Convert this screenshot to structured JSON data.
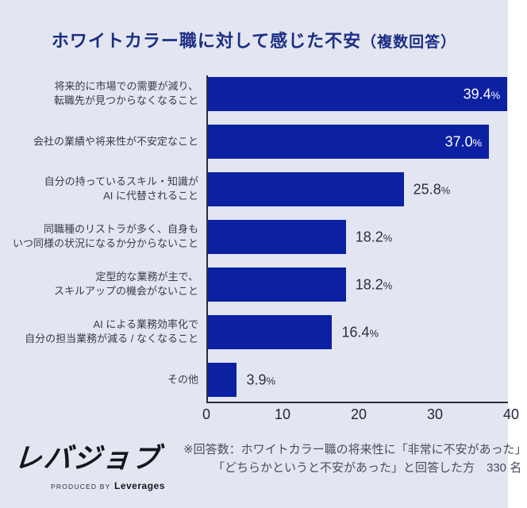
{
  "title": {
    "main": "ホワイトカラー職に対して感じた不安",
    "suffix": "（複数回答）"
  },
  "chart_data": {
    "type": "bar",
    "orientation": "horizontal",
    "unit": "%",
    "title": "ホワイトカラー職に対して感じた不安（複数回答）",
    "xlabel": "",
    "ylabel": "",
    "xlim": [
      0,
      40
    ],
    "x_ticks": [
      0,
      10,
      20,
      30,
      40
    ],
    "grid": false,
    "legend": false,
    "items": [
      {
        "label_lines": [
          "将来的に市場での需要が減り、",
          "転職先が見つからなくなること"
        ],
        "value": 39.4,
        "value_label": "39.4%"
      },
      {
        "label_lines": [
          "会社の業績や将来性が不安定なこと"
        ],
        "value": 37.0,
        "value_label": "37.0%"
      },
      {
        "label_lines": [
          "自分の持っているスキル・知識が",
          "AI に代替されること"
        ],
        "value": 25.8,
        "value_label": "25.8%"
      },
      {
        "label_lines": [
          "同職種のリストラが多く、自身も",
          "いつ同様の状況になるか分からないこと"
        ],
        "value": 18.2,
        "value_label": "18.2%"
      },
      {
        "label_lines": [
          "定型的な業務が主で、",
          "スキルアップの機会がないこと"
        ],
        "value": 18.2,
        "value_label": "18.2%"
      },
      {
        "label_lines": [
          "AI による業務効率化で",
          "自分の担当業務が減る / なくなること"
        ],
        "value": 16.4,
        "value_label": "16.4%"
      },
      {
        "label_lines": [
          "その他"
        ],
        "value": 3.9,
        "value_label": "3.9%"
      }
    ]
  },
  "footer": {
    "logo_text": "レバジョブ",
    "logo_subtext_small": "PRODUCED BY",
    "logo_subtext_bold": "Leverages",
    "note_line1": "※回答数：ホワイトカラー職の将来性に「非常に不安があった」",
    "note_line2": "「どちらかというと不安があった」と回答した方　330 名"
  },
  "colors": {
    "background": "#e3e6f0",
    "bar": "#0c20a2",
    "title_text": "#1c2d85",
    "axis": "#2b2f3a",
    "category_text": "#363b4d",
    "value_inside_text": "#ffffff",
    "value_outside_text": "#2b2f3a",
    "note_text": "#474c61",
    "logo_text": "#15161c"
  }
}
